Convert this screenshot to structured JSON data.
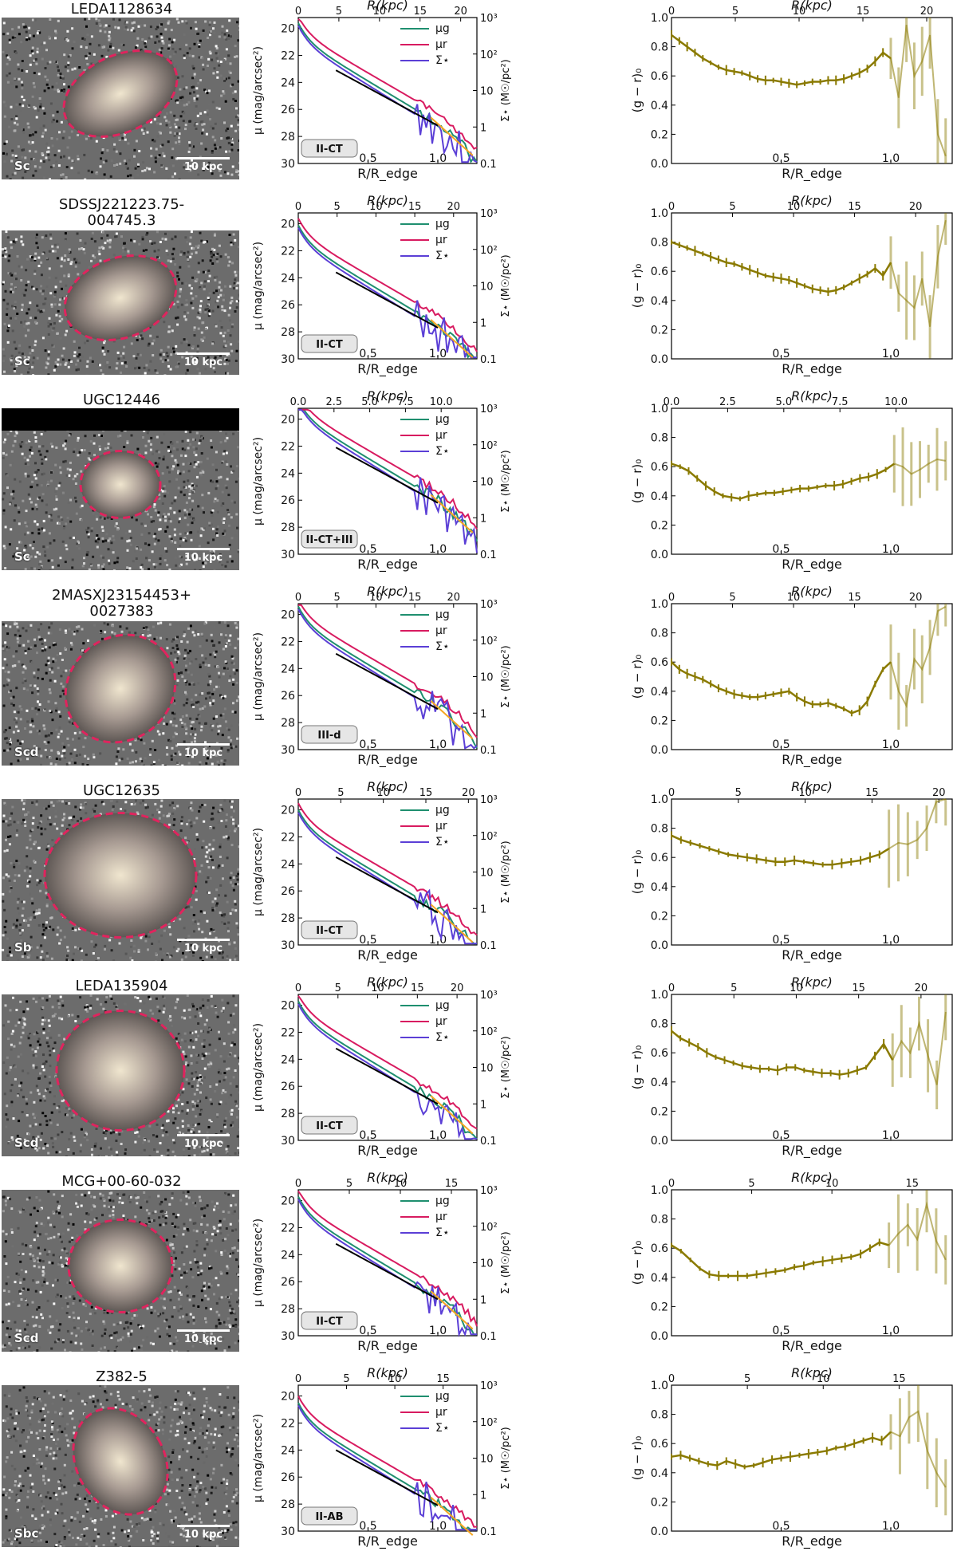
{
  "colors": {
    "mu_g": "#1f8f6f",
    "mu_r": "#d81b60",
    "sigma": "#5b3fd6",
    "fit": "#000000",
    "outer_fit": "#f5a623",
    "color_line": "#8a7a00",
    "ellipse": "#e0245e"
  },
  "labels": {
    "mu_axis": "μ (mag/arcsec²)",
    "sigma_axis": "Σ⋆ (M☉/pc²)",
    "color_axis": "(g − r)₀",
    "r_kpc": "R(kpc)",
    "r_redge": "R/R_edge",
    "legend": [
      "μg",
      "μr",
      "Σ⋆"
    ],
    "scale": "10 kpc"
  },
  "galaxies": [
    {
      "name": "LEDA1128634",
      "name2": "",
      "type": "Sc",
      "profile": "II-CT",
      "kpc_ticks": [
        "0",
        "5",
        "10",
        "15",
        "20"
      ],
      "kpc_max": 22,
      "colors_gr": [
        0.88,
        0.84,
        0.8,
        0.76,
        0.72,
        0.69,
        0.66,
        0.64,
        0.63,
        0.62,
        0.6,
        0.58,
        0.57,
        0.57,
        0.56,
        0.55,
        0.54,
        0.55,
        0.56,
        0.56,
        0.57,
        0.57,
        0.58,
        0.6,
        0.62,
        0.65,
        0.7,
        0.76,
        0.72,
        0.45,
        0.95,
        0.6,
        0.7,
        0.88,
        0.2,
        0.05
      ]
    },
    {
      "name": "SDSSJ221223.75-",
      "name2": "004745.3",
      "type": "Sc",
      "profile": "II-CT",
      "kpc_ticks": [
        "0",
        "5",
        "10",
        "15",
        "20"
      ],
      "kpc_max": 23,
      "colors_gr": [
        0.8,
        0.78,
        0.76,
        0.74,
        0.72,
        0.7,
        0.68,
        0.66,
        0.65,
        0.63,
        0.61,
        0.59,
        0.57,
        0.56,
        0.55,
        0.54,
        0.52,
        0.5,
        0.48,
        0.47,
        0.46,
        0.47,
        0.49,
        0.52,
        0.55,
        0.58,
        0.62,
        0.57,
        0.66,
        0.45,
        0.4,
        0.35,
        0.55,
        0.22,
        0.7,
        0.95
      ]
    },
    {
      "name": "UGC12446",
      "name2": "",
      "type": "Sc",
      "profile": "II-CT+III",
      "kpc_ticks": [
        "0.0",
        "2.5",
        "5.0",
        "7.5",
        "10.0"
      ],
      "kpc_max": 12.5,
      "colors_gr": [
        0.62,
        0.6,
        0.57,
        0.52,
        0.47,
        0.43,
        0.4,
        0.39,
        0.38,
        0.4,
        0.41,
        0.42,
        0.42,
        0.43,
        0.44,
        0.45,
        0.45,
        0.46,
        0.47,
        0.47,
        0.48,
        0.5,
        0.52,
        0.53,
        0.55,
        0.58,
        0.62,
        0.6,
        0.55,
        0.58,
        0.62,
        0.65,
        0.64
      ]
    },
    {
      "name": "2MASXJ23154453+",
      "name2": "0027383",
      "type": "Scd",
      "profile": "III-d",
      "kpc_ticks": [
        "0",
        "5",
        "10",
        "15",
        "20"
      ],
      "kpc_max": 23,
      "colors_gr": [
        0.6,
        0.55,
        0.52,
        0.5,
        0.48,
        0.45,
        0.42,
        0.4,
        0.38,
        0.37,
        0.36,
        0.36,
        0.37,
        0.38,
        0.39,
        0.4,
        0.36,
        0.33,
        0.31,
        0.31,
        0.32,
        0.3,
        0.28,
        0.25,
        0.27,
        0.33,
        0.45,
        0.55,
        0.6,
        0.4,
        0.3,
        0.62,
        0.55,
        0.7,
        0.95,
        0.98
      ]
    },
    {
      "name": "UGC12635",
      "name2": "",
      "type": "Sb",
      "profile": "II-CT",
      "kpc_ticks": [
        "0",
        "5",
        "10",
        "15",
        "20"
      ],
      "kpc_max": 21,
      "colors_gr": [
        0.75,
        0.72,
        0.7,
        0.68,
        0.66,
        0.64,
        0.62,
        0.61,
        0.6,
        0.59,
        0.58,
        0.57,
        0.57,
        0.58,
        0.57,
        0.56,
        0.55,
        0.55,
        0.56,
        0.57,
        0.58,
        0.6,
        0.62,
        0.66,
        0.7,
        0.69,
        0.72,
        0.8,
        0.98,
        1.0
      ]
    },
    {
      "name": "LEDA135904",
      "name2": "",
      "type": "Scd",
      "profile": "II-CT",
      "kpc_ticks": [
        "0",
        "5",
        "10",
        "15",
        "20"
      ],
      "kpc_max": 22.5,
      "colors_gr": [
        0.75,
        0.7,
        0.67,
        0.64,
        0.6,
        0.57,
        0.55,
        0.53,
        0.51,
        0.5,
        0.49,
        0.49,
        0.48,
        0.5,
        0.5,
        0.48,
        0.47,
        0.46,
        0.46,
        0.45,
        0.46,
        0.48,
        0.5,
        0.58,
        0.66,
        0.55,
        0.68,
        0.6,
        0.8,
        0.58,
        0.38,
        0.88
      ]
    },
    {
      "name": "MCG+00-60-032",
      "name2": "",
      "type": "Scd",
      "profile": "II-CT",
      "kpc_ticks": [
        "0",
        "5",
        "10",
        "15"
      ],
      "kpc_max": 17.5,
      "colors_gr": [
        0.62,
        0.58,
        0.52,
        0.46,
        0.42,
        0.41,
        0.41,
        0.41,
        0.41,
        0.42,
        0.43,
        0.44,
        0.45,
        0.47,
        0.48,
        0.5,
        0.51,
        0.52,
        0.53,
        0.54,
        0.56,
        0.6,
        0.64,
        0.62,
        0.7,
        0.76,
        0.66,
        0.9,
        0.65,
        0.52
      ]
    },
    {
      "name": "Z382-5",
      "name2": "",
      "type": "Sbc",
      "profile": "II-AB",
      "kpc_ticks": [
        "0",
        "5",
        "10",
        "15"
      ],
      "kpc_max": 18.5,
      "colors_gr": [
        0.51,
        0.52,
        0.5,
        0.48,
        0.46,
        0.45,
        0.48,
        0.46,
        0.44,
        0.45,
        0.47,
        0.49,
        0.5,
        0.51,
        0.52,
        0.53,
        0.54,
        0.55,
        0.57,
        0.58,
        0.6,
        0.62,
        0.64,
        0.62,
        0.68,
        0.65,
        0.78,
        0.82,
        0.55,
        0.4,
        0.3
      ]
    }
  ]
}
